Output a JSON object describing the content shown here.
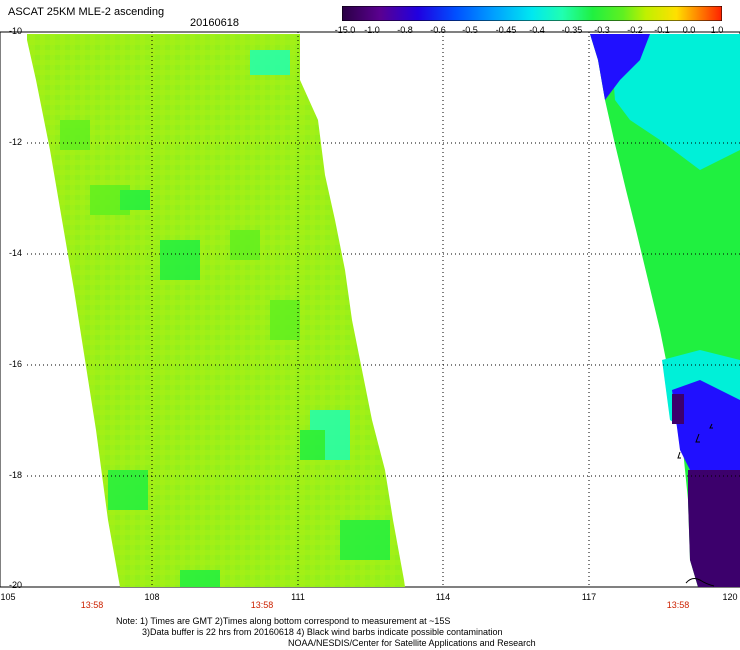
{
  "header": {
    "title": "ASCAT 25KM MLE-2 ascending",
    "date": "20160618"
  },
  "colorbar": {
    "ticks": [
      "-15.0",
      "-1.0",
      "-0.8",
      "-0.6",
      "-0.5",
      "-0.45",
      "-0.4",
      "-0.35",
      "-0.3",
      "-0.2",
      "-0.1",
      "0.0",
      "1.0"
    ],
    "colors": [
      "#2a0044",
      "#5a0090",
      "#2000e0",
      "#0050ff",
      "#00a0ff",
      "#00e8f0",
      "#20ffb0",
      "#20f040",
      "#60f020",
      "#c0f000",
      "#ffe000",
      "#ff8000",
      "#ff2000"
    ]
  },
  "map": {
    "lat_labels": [
      "-10",
      "-12",
      "-14",
      "-16",
      "-18",
      "-20"
    ],
    "lon_labels": [
      "105",
      "108",
      "111",
      "114",
      "117",
      "120"
    ],
    "time_labels": [
      "13:58",
      "13:58",
      "13:58"
    ],
    "colors": {
      "green_main": "#9ef018",
      "green_dark": "#60f020",
      "green_mid": "#20f040",
      "cyan": "#00f0d8",
      "blue": "#2010ff",
      "purple": "#3c006c"
    }
  },
  "notes": {
    "line1": "Note: 1) Times are GMT 2)Times along bottom correspond to measurement at ~15S",
    "line2": "3)Data buffer is 22 hrs from 20160618 4) Black wind barbs indicate possible contamination",
    "line3": "NOAA/NESDIS/Center for Satellite Applications and Research"
  }
}
